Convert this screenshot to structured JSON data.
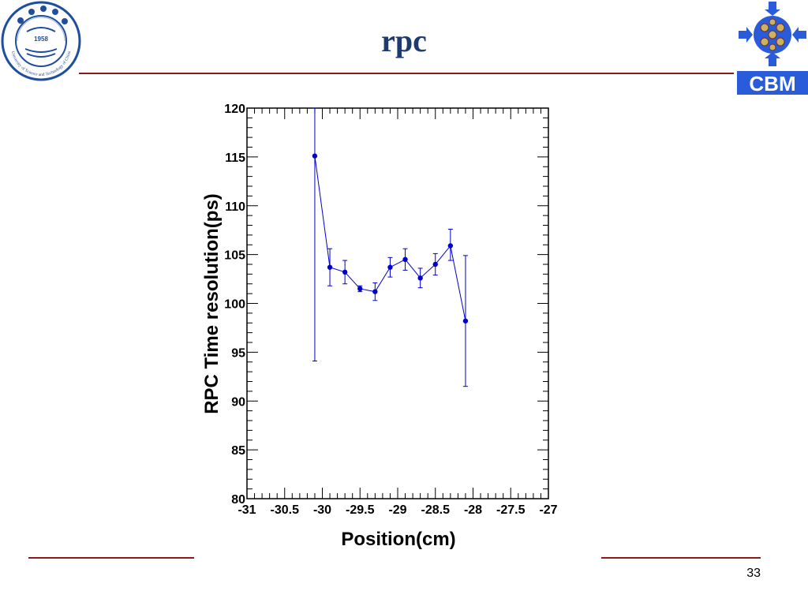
{
  "slide": {
    "title": "rpc",
    "page_number": "33"
  },
  "logos": {
    "left": {
      "year": "1958",
      "ring_text": "University of Science and Technology of China",
      "icon": "university-seal-icon",
      "color": "#1f4e9c"
    },
    "right": {
      "text": "CBM",
      "icon": "cbm-detector-icon",
      "color": "#1f4fd6"
    }
  },
  "colors": {
    "accent_rule": "#8b1a1a",
    "title": "#1f3a6e",
    "series": "#0000cc"
  },
  "chart_data": {
    "type": "scatter",
    "title": "",
    "xlabel": "Position(cm)",
    "ylabel": "RPC Time resolution(ps)",
    "xlim": [
      -31,
      -27
    ],
    "ylim": [
      80,
      120
    ],
    "xticks": [
      -31,
      -30.5,
      -30,
      -29.5,
      -29,
      -28.5,
      -28,
      -27.5,
      -27
    ],
    "xtick_labels": [
      "-31",
      "-30.5",
      "-30",
      "-29.5",
      "-29",
      "-28.5",
      "-28",
      "-27.5",
      "-27"
    ],
    "yticks": [
      80,
      85,
      90,
      95,
      100,
      105,
      110,
      115,
      120
    ],
    "ytick_labels": [
      "80",
      "85",
      "90",
      "95",
      "100",
      "105",
      "110",
      "115",
      "120"
    ],
    "grid": false,
    "connected": true,
    "series": [
      {
        "x": [
          -30.1,
          -29.9,
          -29.7,
          -29.5,
          -29.3,
          -29.1,
          -28.9,
          -28.7,
          -28.5,
          -28.3,
          -28.1
        ],
        "y": [
          115.1,
          103.7,
          103.2,
          101.5,
          101.2,
          103.7,
          104.5,
          102.6,
          104.0,
          105.9,
          98.2
        ],
        "err_low": [
          21.0,
          1.9,
          1.2,
          0.3,
          0.9,
          1.0,
          1.1,
          1.0,
          1.1,
          1.5,
          6.7
        ],
        "err_high": [
          4.9,
          1.9,
          1.2,
          0.3,
          0.9,
          1.0,
          1.1,
          1.0,
          1.1,
          1.7,
          6.7
        ]
      }
    ]
  }
}
